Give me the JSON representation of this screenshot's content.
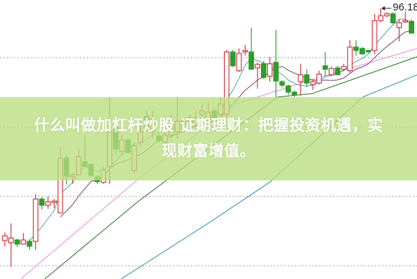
{
  "headline": {
    "line1": "什么叫做加杠杆炒股 证期理财：把握投资机遇，实",
    "line2": "现财富增值。"
  },
  "chart_data": {
    "type": "candlestick",
    "title": "",
    "xlabel": "",
    "ylabel": "",
    "grid": true,
    "high_label": "96.18",
    "colors": {
      "up": "#d2333b",
      "down": "#2e9c2e",
      "ma5": "#4aa3a8",
      "ma10": "#7a3a6e",
      "ma20": "#e79be0",
      "ma60": "#3f7d3a",
      "ma120": "#4b9bb0",
      "grid": "#9a9a9a",
      "banner": "#bade80"
    },
    "candles": [
      {
        "o": 62.7,
        "h": 63.9,
        "l": 61.9,
        "c": 63.4
      },
      {
        "o": 62.4,
        "h": 65.2,
        "l": 58.9,
        "c": 63.1
      },
      {
        "o": 62.8,
        "h": 63.0,
        "l": 61.8,
        "c": 62.2
      },
      {
        "o": 62.2,
        "h": 63.8,
        "l": 62.2,
        "c": 62.8
      },
      {
        "o": 62.6,
        "h": 62.9,
        "l": 61.4,
        "c": 61.9
      },
      {
        "o": 62.6,
        "h": 69.4,
        "l": 61.4,
        "c": 68.7
      },
      {
        "o": 68.7,
        "h": 69.0,
        "l": 67.2,
        "c": 67.8
      },
      {
        "o": 67.8,
        "h": 69.1,
        "l": 67.3,
        "c": 68.3
      },
      {
        "o": 68.2,
        "h": 68.7,
        "l": 67.4,
        "c": 68.4
      },
      {
        "o": 66.7,
        "h": 76.2,
        "l": 66.7,
        "c": 74.6
      },
      {
        "o": 74.6,
        "h": 75.0,
        "l": 70.8,
        "c": 72.0
      },
      {
        "o": 71.9,
        "h": 72.4,
        "l": 70.9,
        "c": 72.2
      },
      {
        "o": 72.2,
        "h": 75.9,
        "l": 72.2,
        "c": 74.8
      },
      {
        "o": 74.1,
        "h": 77.9,
        "l": 73.4,
        "c": 73.4
      },
      {
        "o": 73.7,
        "h": 73.9,
        "l": 71.9,
        "c": 72.1
      },
      {
        "o": 71.9,
        "h": 72.2,
        "l": 70.9,
        "c": 71.2
      },
      {
        "o": 71.1,
        "h": 73.4,
        "l": 70.9,
        "c": 72.9
      },
      {
        "o": 73.4,
        "h": 83.4,
        "l": 70.9,
        "c": 78.4
      },
      {
        "o": 79.4,
        "h": 79.9,
        "l": 74.9,
        "c": 75.9
      },
      {
        "o": 75.6,
        "h": 77.9,
        "l": 74.9,
        "c": 77.2
      },
      {
        "o": 77.2,
        "h": 77.4,
        "l": 75.2,
        "c": 75.4
      },
      {
        "o": 72.8,
        "h": 76.9,
        "l": 72.4,
        "c": 76.4
      },
      {
        "o": 76.9,
        "h": 79.4,
        "l": 76.4,
        "c": 78.4
      },
      {
        "o": 80.6,
        "h": 81.4,
        "l": 78.4,
        "c": 79.2
      },
      {
        "o": 78.4,
        "h": 81.4,
        "l": 77.4,
        "c": 80.2
      },
      {
        "o": 77.8,
        "h": 78.4,
        "l": 76.8,
        "c": 77.1
      },
      {
        "o": 76.9,
        "h": 78.9,
        "l": 76.4,
        "c": 77.9
      },
      {
        "o": 77.9,
        "h": 80.9,
        "l": 77.4,
        "c": 79.4
      },
      {
        "o": 78.4,
        "h": 83.4,
        "l": 77.4,
        "c": 79.9
      },
      {
        "o": 79.4,
        "h": 80.4,
        "l": 78.9,
        "c": 79.9
      },
      {
        "o": 79.1,
        "h": 80.9,
        "l": 78.8,
        "c": 80.4
      },
      {
        "o": 79.4,
        "h": 81.4,
        "l": 78.9,
        "c": 80.4
      },
      {
        "o": 80.9,
        "h": 82.4,
        "l": 80.4,
        "c": 81.4
      },
      {
        "o": 80.1,
        "h": 82.6,
        "l": 79.4,
        "c": 81.2
      },
      {
        "o": 81.4,
        "h": 81.9,
        "l": 80.2,
        "c": 80.4
      },
      {
        "o": 80.9,
        "h": 83.4,
        "l": 80.6,
        "c": 82.4
      },
      {
        "o": 80.9,
        "h": 90.2,
        "l": 80.4,
        "c": 89.9
      },
      {
        "o": 89.9,
        "h": 90.2,
        "l": 87.7,
        "c": 87.9
      },
      {
        "o": 87.2,
        "h": 90.4,
        "l": 87.0,
        "c": 89.7
      },
      {
        "o": 89.9,
        "h": 90.9,
        "l": 89.4,
        "c": 90.1
      },
      {
        "o": 89.9,
        "h": 93.4,
        "l": 87.4,
        "c": 87.4
      },
      {
        "o": 87.6,
        "h": 88.4,
        "l": 84.6,
        "c": 88.1
      },
      {
        "o": 88.2,
        "h": 88.6,
        "l": 86.0,
        "c": 86.2
      },
      {
        "o": 86.4,
        "h": 89.2,
        "l": 85.6,
        "c": 88.2
      },
      {
        "o": 88.4,
        "h": 93.1,
        "l": 83.2,
        "c": 85.7
      },
      {
        "o": 85.6,
        "h": 85.8,
        "l": 84.8,
        "c": 85.1
      },
      {
        "o": 85.0,
        "h": 85.2,
        "l": 83.7,
        "c": 84.1
      },
      {
        "o": 84.1,
        "h": 84.3,
        "l": 83.4,
        "c": 83.7
      },
      {
        "o": 85.6,
        "h": 88.2,
        "l": 83.6,
        "c": 86.6
      },
      {
        "o": 86.6,
        "h": 87.4,
        "l": 84.9,
        "c": 85.4
      },
      {
        "o": 85.2,
        "h": 85.9,
        "l": 84.4,
        "c": 85.6
      },
      {
        "o": 85.4,
        "h": 87.2,
        "l": 85.2,
        "c": 86.7
      },
      {
        "o": 87.9,
        "h": 89.9,
        "l": 86.4,
        "c": 87.4
      },
      {
        "o": 86.6,
        "h": 87.8,
        "l": 86.4,
        "c": 87.5
      },
      {
        "o": 87.6,
        "h": 87.9,
        "l": 86.6,
        "c": 86.6
      },
      {
        "o": 87.4,
        "h": 88.2,
        "l": 87.2,
        "c": 87.8
      },
      {
        "o": 87.2,
        "h": 91.6,
        "l": 86.9,
        "c": 90.6
      },
      {
        "o": 90.6,
        "h": 91.6,
        "l": 89.4,
        "c": 90.1
      },
      {
        "o": 90.4,
        "h": 90.6,
        "l": 89.6,
        "c": 89.6
      },
      {
        "o": 90.1,
        "h": 90.2,
        "l": 89.8,
        "c": 89.9
      },
      {
        "o": 90.1,
        "h": 95.4,
        "l": 89.6,
        "c": 94.4
      },
      {
        "o": 94.4,
        "h": 96.18,
        "l": 94.2,
        "c": 95.1
      },
      {
        "o": 95.1,
        "h": 95.6,
        "l": 94.9,
        "c": 95.4
      },
      {
        "o": 95.4,
        "h": 95.6,
        "l": 93.9,
        "c": 94.1
      },
      {
        "o": 93.4,
        "h": 94.6,
        "l": 91.4,
        "c": 94.1
      },
      {
        "o": 94.2,
        "h": 95.7,
        "l": 94.1,
        "c": 94.4
      },
      {
        "o": 94.3,
        "h": 94.6,
        "l": 92.6,
        "c": 92.6
      }
    ],
    "long_mas": {
      "ma20": [
        [
          2.6,
          57.2
        ],
        [
          21.7,
          71.6
        ],
        [
          37.5,
          82.4
        ],
        [
          49.9,
          85.9
        ],
        [
          55.5,
          87.4
        ],
        [
          66.9,
          90.4
        ]
      ],
      "ma60": [
        [
          6.5,
          57.2
        ],
        [
          21.7,
          68.4
        ],
        [
          44.3,
          83.4
        ],
        [
          49.9,
          83.9
        ],
        [
          66.9,
          89.2
        ]
      ],
      "ma120": [
        [
          18.9,
          57.2
        ],
        [
          33,
          65.2
        ],
        [
          43.1,
          71.2
        ],
        [
          58.1,
          83.4
        ],
        [
          66.9,
          86.6
        ]
      ]
    }
  }
}
